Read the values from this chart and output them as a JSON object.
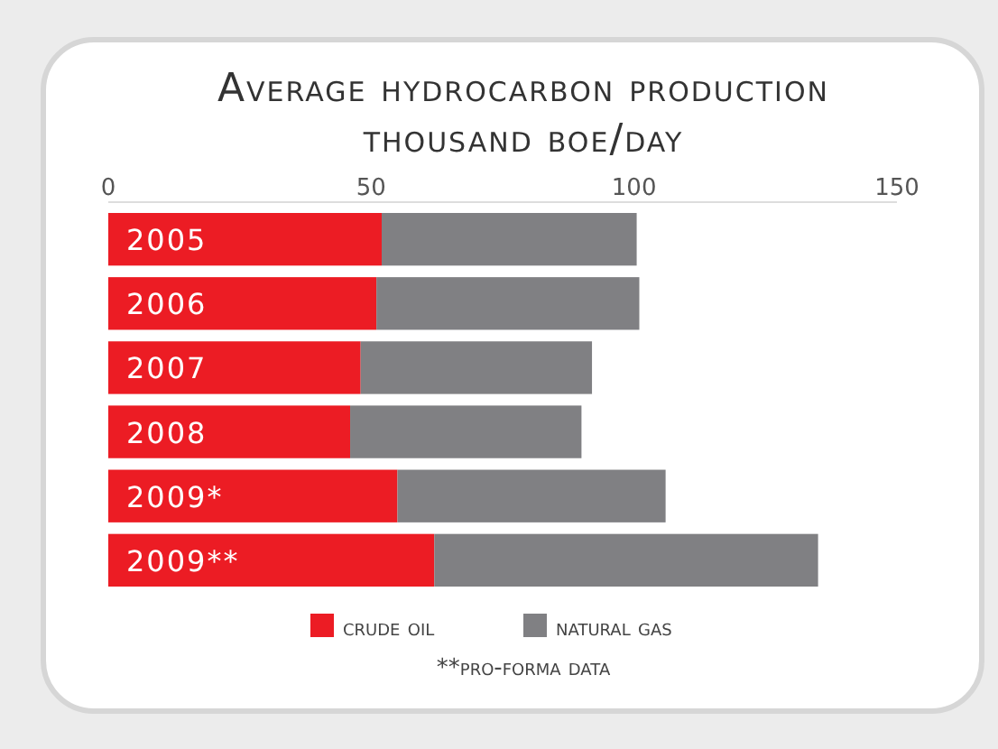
{
  "chart_data": {
    "type": "bar",
    "orientation": "horizontal",
    "stacked": true,
    "title": "Average hydrocarbon production",
    "subtitle": "thousand boe/day",
    "categories": [
      "2005",
      "2006",
      "2007",
      "2008",
      "2009*",
      "2009**"
    ],
    "series": [
      {
        "name": "crude oil",
        "color": "#ec1c24",
        "values": [
          52,
          51,
          48,
          46,
          55,
          62
        ]
      },
      {
        "name": "natural gas",
        "color": "#808083",
        "values": [
          48.5,
          50,
          44,
          44,
          51,
          73
        ]
      }
    ],
    "xlim": [
      0,
      150
    ],
    "xticks": [
      0,
      50,
      100,
      150
    ],
    "legend": "bottom",
    "grid": false,
    "annotations": [
      "**pro-forma data"
    ]
  }
}
